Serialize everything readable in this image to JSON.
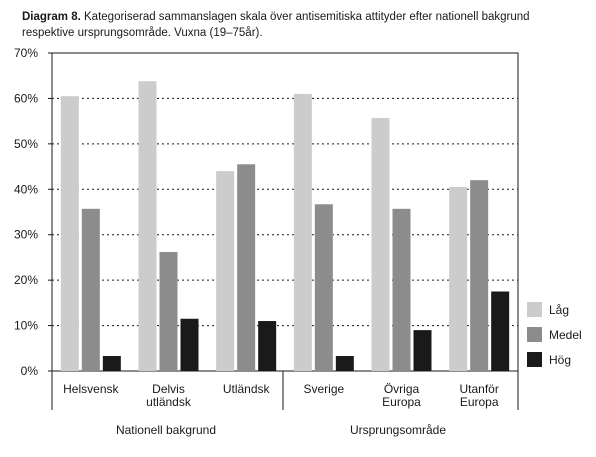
{
  "title": {
    "label": "Diagram 8.",
    "text": "Kategoriserad sammanslagen skala över antisemitiska attityder efter nationell bakgrund respektive ursprungsområde. Vuxna (19–75år)."
  },
  "chart_data": {
    "type": "bar",
    "categories": [
      [
        "Helsvensk"
      ],
      [
        "Delvis",
        "utländsk"
      ],
      [
        "Utländsk"
      ],
      [
        "Sverige"
      ],
      [
        "Övriga",
        "Europa"
      ],
      [
        "Utanför",
        "Europa"
      ]
    ],
    "series": [
      {
        "name": "Låg",
        "color": "#cccccc",
        "values": [
          60.5,
          63.8,
          44,
          61,
          55.7,
          40.5
        ]
      },
      {
        "name": "Medel",
        "color": "#8c8c8c",
        "values": [
          35.7,
          26.2,
          45.5,
          36.7,
          35.7,
          42
        ]
      },
      {
        "name": "Hög",
        "color": "#1a1a1a",
        "values": [
          3.3,
          11.5,
          11,
          3.3,
          9,
          17.5
        ]
      }
    ],
    "ylim": [
      0,
      70
    ],
    "yticks": [
      "0%",
      "10%",
      "20%",
      "30%",
      "40%",
      "50%",
      "60%",
      "70%"
    ],
    "grid": "dotted horizontal",
    "groups": [
      "Nationell bakgrund",
      "Ursprungsområde"
    ],
    "legend_position": "right"
  }
}
